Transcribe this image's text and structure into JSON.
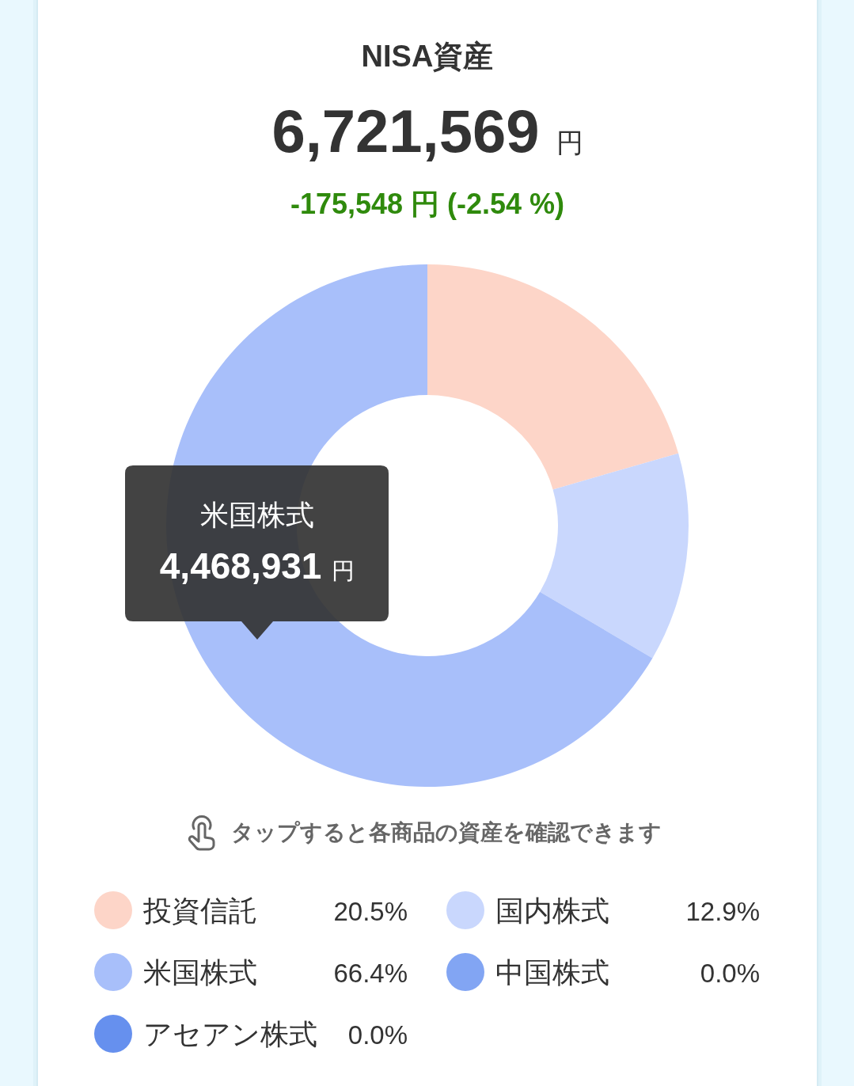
{
  "chart_data": {
    "type": "donut",
    "title": "NISA資産",
    "subtitle": "6,721,569 円",
    "categories": [
      "投資信託",
      "国内株式",
      "米国株式",
      "中国株式",
      "アセアン株式"
    ],
    "values": [
      20.5,
      12.9,
      66.4,
      0.0,
      0.0
    ],
    "colors": [
      "#fdd5c8",
      "#c9d7fd",
      "#a8bffa",
      "#82a5f3",
      "#6690ee"
    ],
    "value_labels": [
      "20.5%",
      "12.9%",
      "66.4%",
      "0.0%",
      "0.0%"
    ],
    "legend": "bottom",
    "annotations": [
      "-175,548 円 (-2.54 %)",
      "タップすると各商品の資産を確認できます",
      "米国株式",
      "4,468,931 円"
    ]
  }
}
